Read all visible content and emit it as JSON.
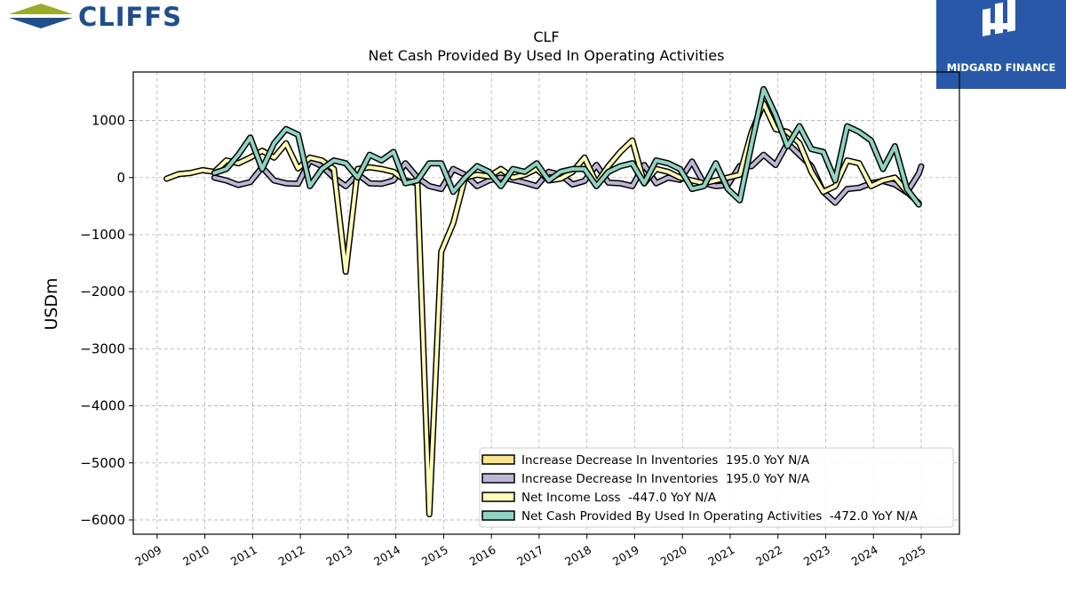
{
  "logos": {
    "left_brand": "CLIFFS",
    "right_brand": "MIDGARD FINANCE"
  },
  "colors": {
    "legend_swatches": [
      "#f8e58c",
      "#bcb6d6",
      "#fdfbb6",
      "#8fd3c2"
    ]
  },
  "chart_data": {
    "type": "line",
    "title": "CLF",
    "subtitle": "Net Cash Provided By Used In Operating Activities",
    "ylabel": "USDm",
    "xlabel": "",
    "xlim": [
      2008.5,
      2025.8
    ],
    "ylim": [
      -6250,
      1850
    ],
    "yticks": [
      1000,
      0,
      -1000,
      -2000,
      -3000,
      -4000,
      -5000,
      -6000
    ],
    "ytick_labels": [
      "1000",
      "0",
      "−1000",
      "−2000",
      "−3000",
      "−4000",
      "−5000",
      "−6000"
    ],
    "xticks": [
      2009,
      2010,
      2011,
      2012,
      2013,
      2014,
      2015,
      2016,
      2017,
      2018,
      2019,
      2020,
      2021,
      2022,
      2023,
      2024,
      2025
    ],
    "xtick_labels": [
      "2009",
      "2010",
      "2011",
      "2012",
      "2013",
      "2014",
      "2015",
      "2016",
      "2017",
      "2018",
      "2019",
      "2020",
      "2021",
      "2022",
      "2023",
      "2024",
      "2025"
    ],
    "grid": true,
    "legend_position": "lower-right",
    "series": [
      {
        "name": "Increase Decrease In Inventories  195.0 YoY N/A",
        "color": "#f8e58c",
        "points": []
      },
      {
        "name": "Increase Decrease In Inventories  195.0 YoY N/A",
        "color": "#bcb6d6",
        "points": [
          [
            2010.2,
            0
          ],
          [
            2010.45,
            -50
          ],
          [
            2010.7,
            -130
          ],
          [
            2010.95,
            -80
          ],
          [
            2011.2,
            180
          ],
          [
            2011.45,
            -50
          ],
          [
            2011.7,
            -100
          ],
          [
            2011.95,
            -110
          ],
          [
            2012.2,
            300
          ],
          [
            2012.45,
            200
          ],
          [
            2012.7,
            0
          ],
          [
            2012.95,
            -150
          ],
          [
            2013.2,
            60
          ],
          [
            2013.45,
            -100
          ],
          [
            2013.7,
            -110
          ],
          [
            2013.95,
            -50
          ],
          [
            2014.2,
            250
          ],
          [
            2014.45,
            0
          ],
          [
            2014.7,
            -150
          ],
          [
            2014.95,
            -200
          ],
          [
            2015.2,
            150
          ],
          [
            2015.45,
            50
          ],
          [
            2015.7,
            -150
          ],
          [
            2015.95,
            -50
          ],
          [
            2016.2,
            0
          ],
          [
            2016.45,
            -40
          ],
          [
            2016.7,
            -90
          ],
          [
            2016.95,
            -150
          ],
          [
            2017.2,
            100
          ],
          [
            2017.45,
            50
          ],
          [
            2017.7,
            -120
          ],
          [
            2017.95,
            -60
          ],
          [
            2018.2,
            220
          ],
          [
            2018.45,
            -90
          ],
          [
            2018.7,
            -100
          ],
          [
            2018.95,
            -150
          ],
          [
            2019.2,
            220
          ],
          [
            2019.45,
            -100
          ],
          [
            2019.7,
            0
          ],
          [
            2019.95,
            -40
          ],
          [
            2020.2,
            280
          ],
          [
            2020.45,
            -100
          ],
          [
            2020.7,
            -150
          ],
          [
            2020.95,
            -130
          ],
          [
            2021.2,
            200
          ],
          [
            2021.45,
            200
          ],
          [
            2021.7,
            400
          ],
          [
            2021.95,
            220
          ],
          [
            2022.2,
            600
          ],
          [
            2022.45,
            400
          ],
          [
            2022.7,
            200
          ],
          [
            2022.95,
            -250
          ],
          [
            2023.2,
            -440
          ],
          [
            2023.45,
            -200
          ],
          [
            2023.7,
            -180
          ],
          [
            2023.95,
            -100
          ],
          [
            2024.2,
            -60
          ],
          [
            2024.45,
            -120
          ],
          [
            2024.7,
            -260
          ],
          [
            2024.95,
            70
          ],
          [
            2025.0,
            195
          ]
        ]
      },
      {
        "name": "Net Income Loss  -447.0 YoY N/A",
        "color": "#fdfbb6",
        "points": [
          [
            2009.2,
            -20
          ],
          [
            2009.45,
            60
          ],
          [
            2009.7,
            80
          ],
          [
            2009.95,
            130
          ],
          [
            2010.2,
            100
          ],
          [
            2010.45,
            300
          ],
          [
            2010.7,
            250
          ],
          [
            2010.95,
            350
          ],
          [
            2011.2,
            470
          ],
          [
            2011.45,
            350
          ],
          [
            2011.7,
            600
          ],
          [
            2011.95,
            160
          ],
          [
            2012.2,
            350
          ],
          [
            2012.45,
            300
          ],
          [
            2012.7,
            150
          ],
          [
            2012.95,
            -1650
          ],
          [
            2013.2,
            150
          ],
          [
            2013.45,
            180
          ],
          [
            2013.7,
            150
          ],
          [
            2013.95,
            100
          ],
          [
            2014.2,
            -50
          ],
          [
            2014.45,
            -100
          ],
          [
            2014.7,
            -5900
          ],
          [
            2014.95,
            -1300
          ],
          [
            2015.2,
            -800
          ],
          [
            2015.45,
            0
          ],
          [
            2015.7,
            50
          ],
          [
            2015.95,
            20
          ],
          [
            2016.2,
            150
          ],
          [
            2016.45,
            0
          ],
          [
            2016.7,
            50
          ],
          [
            2016.95,
            150
          ],
          [
            2017.2,
            -50
          ],
          [
            2017.45,
            -20
          ],
          [
            2017.7,
            100
          ],
          [
            2017.95,
            350
          ],
          [
            2018.2,
            -100
          ],
          [
            2018.45,
            200
          ],
          [
            2018.7,
            450
          ],
          [
            2018.95,
            650
          ],
          [
            2019.2,
            -100
          ],
          [
            2019.45,
            150
          ],
          [
            2019.7,
            100
          ],
          [
            2019.95,
            0
          ],
          [
            2020.2,
            -50
          ],
          [
            2020.45,
            -100
          ],
          [
            2020.7,
            -50
          ],
          [
            2020.95,
            0
          ],
          [
            2021.2,
            50
          ],
          [
            2021.45,
            800
          ],
          [
            2021.7,
            1300
          ],
          [
            2021.95,
            850
          ],
          [
            2022.2,
            800
          ],
          [
            2022.45,
            600
          ],
          [
            2022.7,
            100
          ],
          [
            2022.95,
            -250
          ],
          [
            2023.2,
            -150
          ],
          [
            2023.45,
            300
          ],
          [
            2023.7,
            250
          ],
          [
            2023.95,
            -150
          ],
          [
            2024.2,
            -50
          ],
          [
            2024.45,
            0
          ],
          [
            2024.7,
            -250
          ],
          [
            2024.95,
            -447
          ]
        ]
      },
      {
        "name": "Net Cash Provided By Used In Operating Activities  -472.0 YoY N/A",
        "color": "#8fd3c2",
        "points": [
          [
            2010.2,
            80
          ],
          [
            2010.45,
            150
          ],
          [
            2010.7,
            400
          ],
          [
            2010.95,
            700
          ],
          [
            2011.2,
            150
          ],
          [
            2011.45,
            600
          ],
          [
            2011.7,
            850
          ],
          [
            2011.95,
            750
          ],
          [
            2012.2,
            -150
          ],
          [
            2012.45,
            150
          ],
          [
            2012.7,
            300
          ],
          [
            2012.95,
            250
          ],
          [
            2013.2,
            0
          ],
          [
            2013.45,
            400
          ],
          [
            2013.7,
            300
          ],
          [
            2013.95,
            450
          ],
          [
            2014.2,
            -100
          ],
          [
            2014.45,
            -50
          ],
          [
            2014.7,
            250
          ],
          [
            2014.95,
            250
          ],
          [
            2015.2,
            -250
          ],
          [
            2015.45,
            0
          ],
          [
            2015.7,
            200
          ],
          [
            2015.95,
            100
          ],
          [
            2016.2,
            -150
          ],
          [
            2016.45,
            150
          ],
          [
            2016.7,
            100
          ],
          [
            2016.95,
            250
          ],
          [
            2017.2,
            -50
          ],
          [
            2017.45,
            100
          ],
          [
            2017.7,
            150
          ],
          [
            2017.95,
            150
          ],
          [
            2018.2,
            -150
          ],
          [
            2018.45,
            100
          ],
          [
            2018.7,
            200
          ],
          [
            2018.95,
            250
          ],
          [
            2019.2,
            -100
          ],
          [
            2019.45,
            300
          ],
          [
            2019.7,
            250
          ],
          [
            2019.95,
            150
          ],
          [
            2020.2,
            -200
          ],
          [
            2020.45,
            -150
          ],
          [
            2020.7,
            250
          ],
          [
            2020.95,
            -200
          ],
          [
            2021.2,
            -400
          ],
          [
            2021.45,
            600
          ],
          [
            2021.7,
            1550
          ],
          [
            2021.95,
            1100
          ],
          [
            2022.2,
            550
          ],
          [
            2022.45,
            900
          ],
          [
            2022.7,
            500
          ],
          [
            2022.95,
            450
          ],
          [
            2023.2,
            -50
          ],
          [
            2023.45,
            900
          ],
          [
            2023.7,
            800
          ],
          [
            2023.95,
            650
          ],
          [
            2024.2,
            150
          ],
          [
            2024.45,
            550
          ],
          [
            2024.7,
            -200
          ],
          [
            2024.95,
            -472
          ]
        ]
      }
    ]
  }
}
